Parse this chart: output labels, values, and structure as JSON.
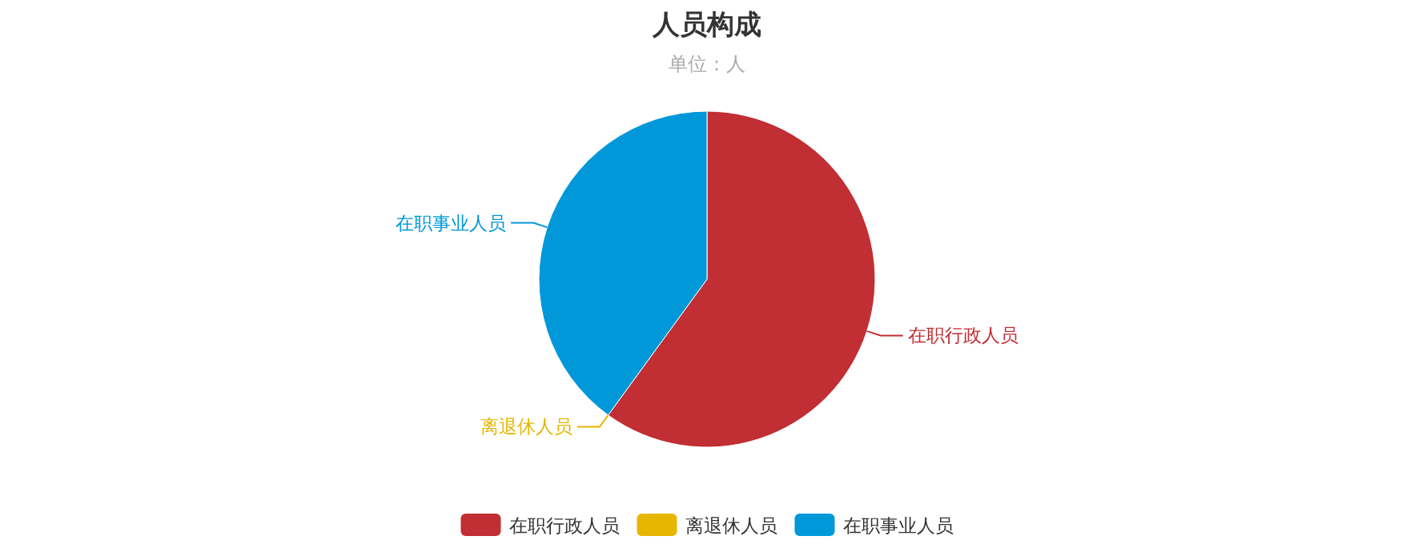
{
  "chart_data": {
    "type": "pie",
    "title": "人员构成",
    "subtitle": "单位：人",
    "categories": [
      "在职行政人员",
      "离退休人员",
      "在职事业人员"
    ],
    "values": [
      60,
      0,
      40
    ],
    "colors": [
      "#c12e34",
      "#e6b600",
      "#0098d9"
    ],
    "legend": "bottom"
  }
}
